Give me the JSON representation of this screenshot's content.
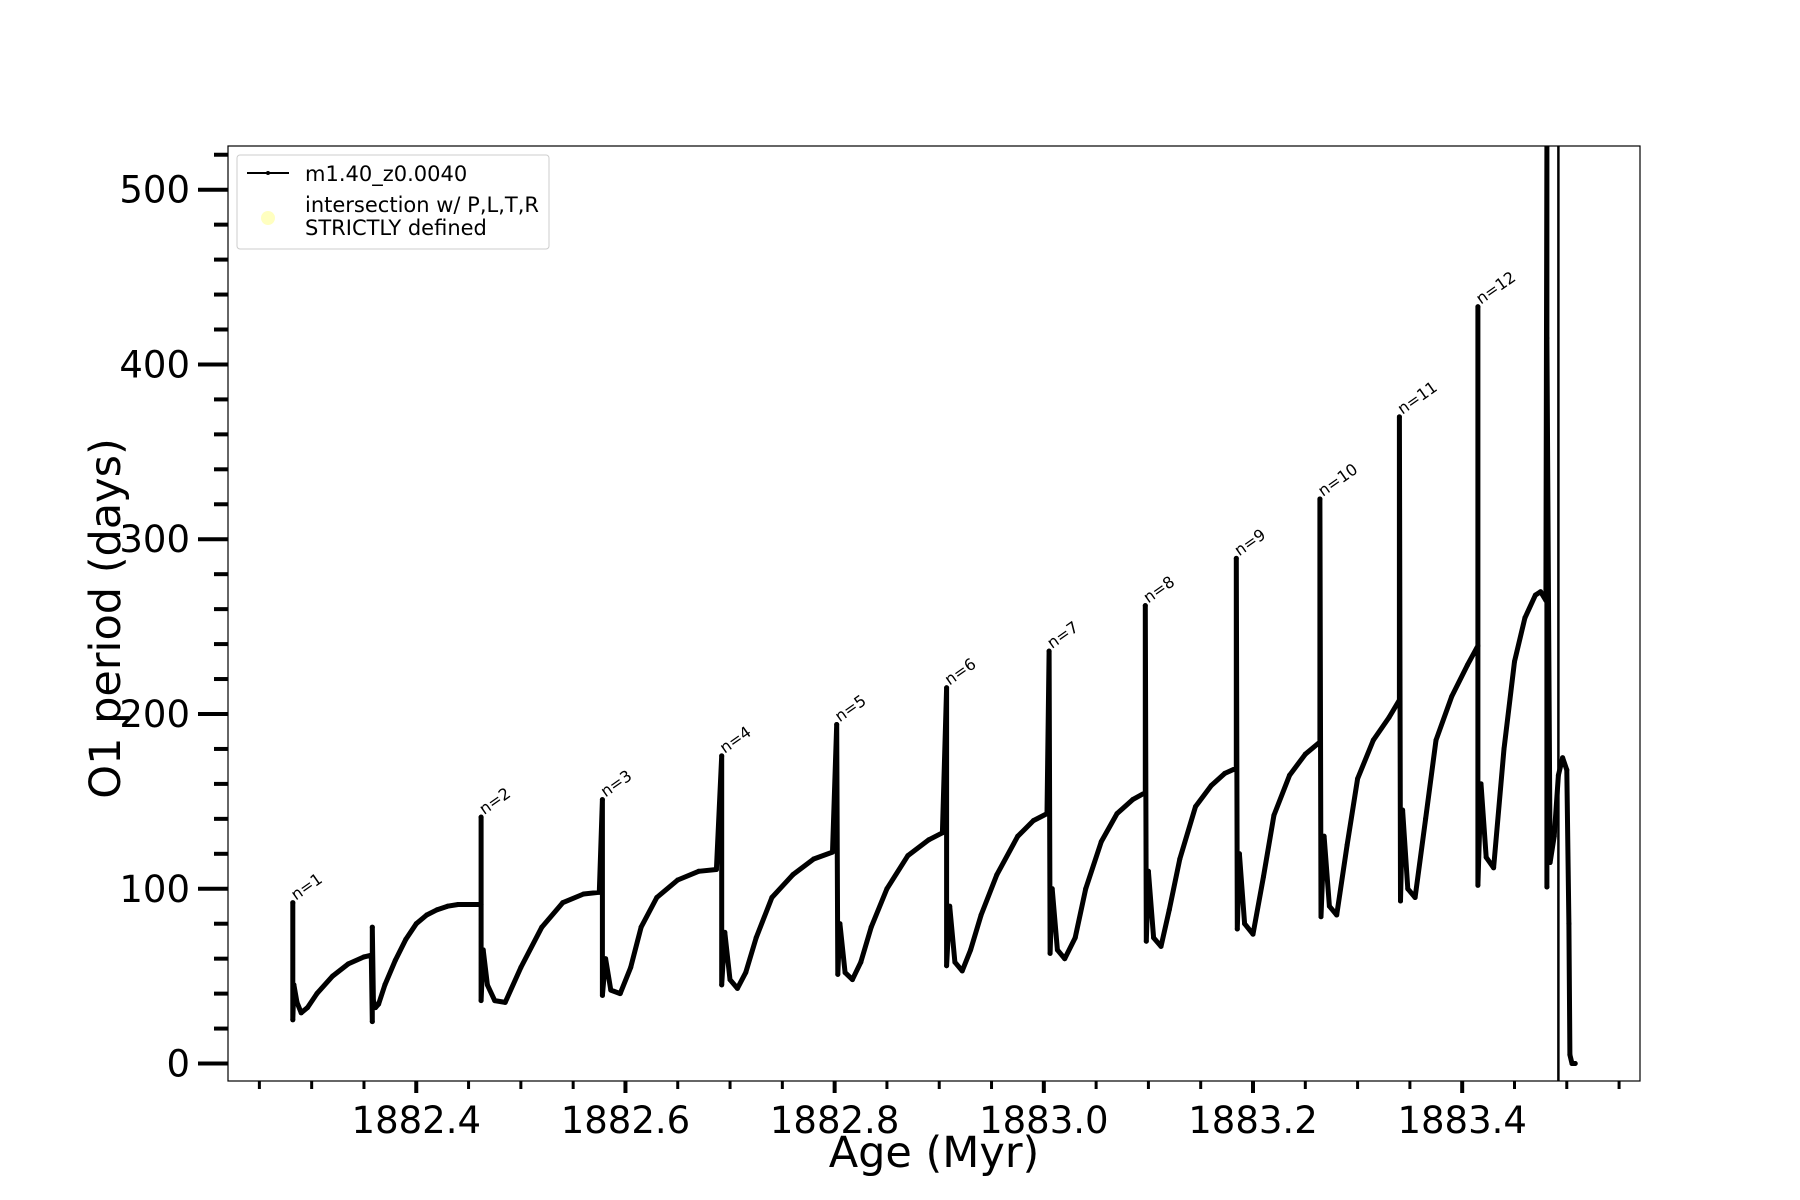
{
  "chart_data": {
    "type": "line",
    "xlabel": "Age (Myr)",
    "ylabel": "O1 period (days)",
    "xlim": [
      1882.22,
      1883.57
    ],
    "ylim": [
      -10,
      525
    ],
    "x_ticks": [
      1882.4,
      1882.6,
      1882.8,
      1883.0,
      1883.2,
      1883.4
    ],
    "x_tick_labels": [
      "1882.4",
      "1882.6",
      "1882.8",
      "1883.0",
      "1883.2",
      "1883.4"
    ],
    "x_minor_ticks": [
      1882.25,
      1882.3,
      1882.35,
      1882.45,
      1882.5,
      1882.55,
      1882.65,
      1882.7,
      1882.75,
      1882.85,
      1882.9,
      1882.95,
      1883.05,
      1883.1,
      1883.15,
      1883.25,
      1883.3,
      1883.35,
      1883.45,
      1883.5,
      1883.55
    ],
    "y_ticks": [
      0,
      100,
      200,
      300,
      400,
      500
    ],
    "y_tick_labels": [
      "0",
      "100",
      "200",
      "300",
      "400",
      "500"
    ],
    "y_minor_ticks": [
      20,
      40,
      60,
      80,
      120,
      140,
      160,
      180,
      220,
      240,
      260,
      280,
      320,
      340,
      360,
      380,
      420,
      440,
      460,
      480,
      520
    ],
    "legend": {
      "placement": "upper-left",
      "entries": [
        {
          "label": "m1.40_z0.0040",
          "color": "#000000",
          "marker": "line"
        },
        {
          "label": "intersection w/ P,L,T,R STRICTLY defined",
          "color": "#ffffc0",
          "marker": "circle"
        }
      ]
    },
    "series": [
      {
        "name": "m1.40_z0.0040",
        "color": "#000000",
        "x": [
          1882.282,
          1882.282,
          1882.283,
          1882.286,
          1882.29,
          1882.296,
          1882.305,
          1882.32,
          1882.335,
          1882.35,
          1882.357,
          1882.358,
          1882.358,
          1882.359,
          1882.361,
          1882.364,
          1882.37,
          1882.38,
          1882.39,
          1882.4,
          1882.41,
          1882.42,
          1882.43,
          1882.44,
          1882.45,
          1882.462,
          1882.462,
          1882.462,
          1882.464,
          1882.468,
          1882.475,
          1882.485,
          1882.5,
          1882.52,
          1882.54,
          1882.56,
          1882.575,
          1882.578,
          1882.578,
          1882.581,
          1882.586,
          1882.595,
          1882.605,
          1882.615,
          1882.63,
          1882.65,
          1882.67,
          1882.687,
          1882.692,
          1882.692,
          1882.695,
          1882.7,
          1882.707,
          1882.715,
          1882.725,
          1882.74,
          1882.76,
          1882.78,
          1882.798,
          1882.802,
          1882.803,
          1882.805,
          1882.81,
          1882.817,
          1882.825,
          1882.835,
          1882.85,
          1882.87,
          1882.89,
          1882.903,
          1882.907,
          1882.907,
          1882.91,
          1882.915,
          1882.922,
          1882.93,
          1882.94,
          1882.955,
          1882.975,
          1882.99,
          1883.003,
          1883.005,
          1883.006,
          1883.008,
          1883.013,
          1883.02,
          1883.03,
          1883.04,
          1883.055,
          1883.07,
          1883.085,
          1883.097,
          1883.097,
          1883.098,
          1883.1,
          1883.105,
          1883.112,
          1883.12,
          1883.13,
          1883.145,
          1883.16,
          1883.173,
          1883.184,
          1883.184,
          1883.185,
          1883.187,
          1883.192,
          1883.2,
          1883.21,
          1883.22,
          1883.235,
          1883.25,
          1883.264,
          1883.264,
          1883.265,
          1883.268,
          1883.273,
          1883.28,
          1883.29,
          1883.3,
          1883.315,
          1883.33,
          1883.34,
          1883.34,
          1883.341,
          1883.343,
          1883.348,
          1883.355,
          1883.365,
          1883.375,
          1883.39,
          1883.405,
          1883.415,
          1883.415,
          1883.415,
          1883.418,
          1883.423,
          1883.43,
          1883.44,
          1883.45,
          1883.46,
          1883.47,
          1883.475,
          1883.48,
          1883.481,
          1883.481,
          1883.481,
          1883.484,
          1883.488,
          1883.492,
          1883.496,
          1883.5,
          1883.502,
          1883.503,
          1883.505,
          1883.507,
          1883.508
        ],
        "y": [
          92,
          25,
          45,
          35,
          29,
          32,
          40,
          50,
          57,
          61,
          62,
          24,
          78,
          36,
          32,
          34,
          45,
          59,
          71,
          80,
          85,
          88,
          90,
          91,
          91,
          91,
          141,
          36,
          65,
          45,
          36,
          35,
          55,
          78,
          92,
          97,
          98,
          151,
          39,
          60,
          42,
          40,
          55,
          78,
          95,
          105,
          110,
          111,
          176,
          45,
          75,
          48,
          43,
          52,
          72,
          95,
          108,
          117,
          121,
          194,
          51,
          80,
          52,
          48,
          58,
          78,
          100,
          119,
          128,
          132,
          215,
          56,
          90,
          58,
          53,
          65,
          85,
          108,
          130,
          139,
          143,
          236,
          63,
          100,
          65,
          60,
          72,
          100,
          127,
          143,
          151,
          155,
          262,
          70,
          110,
          72,
          67,
          88,
          117,
          147,
          159,
          166,
          169,
          289,
          77,
          120,
          80,
          74,
          107,
          142,
          165,
          177,
          184,
          323,
          84,
          130,
          90,
          85,
          125,
          163,
          185,
          198,
          208,
          370,
          93,
          145,
          100,
          95,
          140,
          185,
          210,
          228,
          239,
          433,
          102,
          160,
          118,
          112,
          180,
          230,
          255,
          268,
          270,
          265,
          525,
          101,
          415,
          115,
          130,
          165,
          175,
          168,
          80,
          5,
          0,
          0,
          0
        ]
      },
      {
        "name": "",
        "color": "#000000",
        "x": [
          1883.492,
          1883.492
        ],
        "y": [
          -10,
          525
        ]
      }
    ],
    "annotations": [
      {
        "text": "n=1",
        "x": 1882.282,
        "y": 92
      },
      {
        "text": "n=2",
        "x": 1882.462,
        "y": 141
      },
      {
        "text": "n=3",
        "x": 1882.578,
        "y": 151
      },
      {
        "text": "n=4",
        "x": 1882.692,
        "y": 176
      },
      {
        "text": "n=5",
        "x": 1882.802,
        "y": 194
      },
      {
        "text": "n=6",
        "x": 1882.907,
        "y": 215
      },
      {
        "text": "n=7",
        "x": 1883.005,
        "y": 236
      },
      {
        "text": "n=8",
        "x": 1883.097,
        "y": 262
      },
      {
        "text": "n=9",
        "x": 1883.184,
        "y": 289
      },
      {
        "text": "n=10",
        "x": 1883.264,
        "y": 323
      },
      {
        "text": "n=11",
        "x": 1883.34,
        "y": 370
      },
      {
        "text": "n=12",
        "x": 1883.415,
        "y": 433
      }
    ]
  }
}
